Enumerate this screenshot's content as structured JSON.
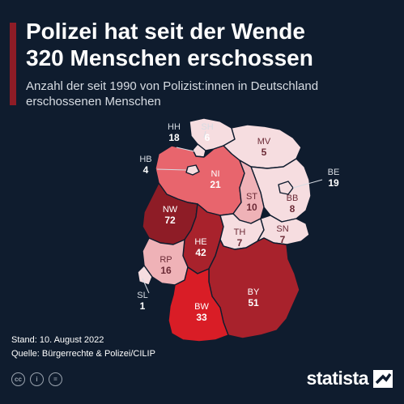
{
  "header": {
    "title_line1": "Polizei hat seit der Wende",
    "title_line2": "320 Menschen erschossen",
    "subtitle": "Anzahl der seit 1990 von Polizist:innen in Deutschland erschossenen Menschen"
  },
  "map": {
    "states": [
      {
        "code": "SH",
        "value": "6",
        "fill": "#f6dde0"
      },
      {
        "code": "HH",
        "value": "18",
        "fill": "#f6dde0"
      },
      {
        "code": "MV",
        "value": "5",
        "fill": "#f6dde0"
      },
      {
        "code": "HB",
        "value": "4",
        "fill": "#f6dde0"
      },
      {
        "code": "NI",
        "value": "21",
        "fill": "#e8656d"
      },
      {
        "code": "BE",
        "value": "19",
        "fill": "#f6dde0"
      },
      {
        "code": "ST",
        "value": "10",
        "fill": "#efb2b7"
      },
      {
        "code": "BB",
        "value": "8",
        "fill": "#f6dde0"
      },
      {
        "code": "NW",
        "value": "72",
        "fill": "#8e1c26"
      },
      {
        "code": "SN",
        "value": "7",
        "fill": "#f6dde0"
      },
      {
        "code": "TH",
        "value": "7",
        "fill": "#f6dde0"
      },
      {
        "code": "HE",
        "value": "42",
        "fill": "#a8222c"
      },
      {
        "code": "RP",
        "value": "16",
        "fill": "#efb2b7"
      },
      {
        "code": "SL",
        "value": "1",
        "fill": "#f6dde0"
      },
      {
        "code": "BY",
        "value": "51",
        "fill": "#a8222c"
      },
      {
        "code": "BW",
        "value": "33",
        "fill": "#d91d26"
      }
    ]
  },
  "footer": {
    "stand": "Stand: 10. August 2022",
    "quelle": "Quelle: Bürgerrechte & Polizei/CILIP"
  },
  "license_icons": [
    "cc-icon",
    "by-icon",
    "nd-icon"
  ],
  "brand": {
    "name": "statista"
  }
}
